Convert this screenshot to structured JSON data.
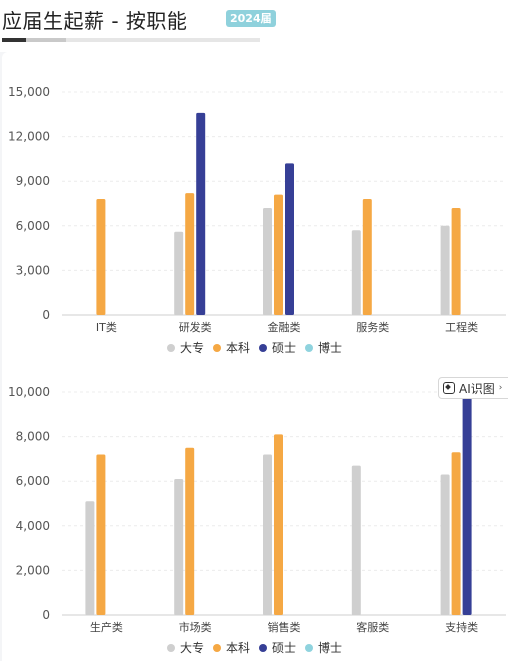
{
  "header": {
    "title": "应届生起薪 - 按职能",
    "badge": "2024届"
  },
  "ai_button": {
    "label": "AI识图",
    "chevron": "›"
  },
  "colors": {
    "大专": "#cfcfcf",
    "本科": "#f5a844",
    "硕士": "#363f96",
    "博士": "#8fd3de"
  },
  "chart_data": [
    {
      "type": "bar",
      "categories": [
        "IT类",
        "研发类",
        "金融类",
        "服务类",
        "工程类"
      ],
      "ylim": [
        0,
        15000
      ],
      "yticks": [
        "0",
        "3,000",
        "6,000",
        "9,000",
        "12,000",
        "15,000"
      ],
      "ytick_values": [
        0,
        3000,
        6000,
        9000,
        12000,
        15000
      ],
      "legend_position": "bottom",
      "series": [
        {
          "name": "大专",
          "values": [
            null,
            5600,
            7200,
            5700,
            6000
          ]
        },
        {
          "name": "本科",
          "values": [
            7800,
            8200,
            8100,
            7800,
            7200
          ]
        },
        {
          "name": "硕士",
          "values": [
            null,
            13600,
            10200,
            null,
            null
          ]
        },
        {
          "name": "博士",
          "values": [
            null,
            null,
            null,
            null,
            null
          ]
        }
      ]
    },
    {
      "type": "bar",
      "categories": [
        "生产类",
        "市场类",
        "销售类",
        "客服类",
        "支持类"
      ],
      "ylim": [
        0,
        10000
      ],
      "yticks": [
        "0",
        "2,000",
        "4,000",
        "6,000",
        "8,000",
        "10,000"
      ],
      "ytick_values": [
        0,
        2000,
        4000,
        6000,
        8000,
        10000
      ],
      "legend_position": "bottom",
      "series": [
        {
          "name": "大专",
          "values": [
            5100,
            6100,
            7200,
            6700,
            6300
          ]
        },
        {
          "name": "本科",
          "values": [
            7200,
            7500,
            8100,
            null,
            7300
          ]
        },
        {
          "name": "硕士",
          "values": [
            null,
            null,
            null,
            null,
            10000
          ]
        },
        {
          "name": "博士",
          "values": [
            null,
            null,
            null,
            null,
            null
          ]
        }
      ]
    }
  ]
}
